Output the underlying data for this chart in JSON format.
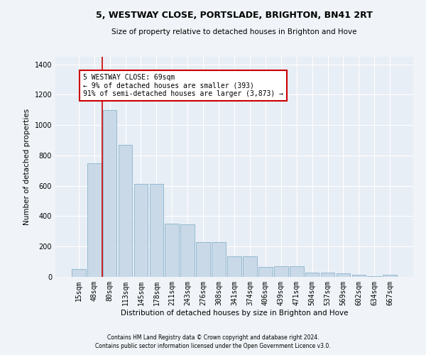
{
  "title1": "5, WESTWAY CLOSE, PORTSLADE, BRIGHTON, BN41 2RT",
  "title2": "Size of property relative to detached houses in Brighton and Hove",
  "xlabel": "Distribution of detached houses by size in Brighton and Hove",
  "ylabel": "Number of detached properties",
  "footer1": "Contains HM Land Registry data © Crown copyright and database right 2024.",
  "footer2": "Contains public sector information licensed under the Open Government Licence v3.0.",
  "annotation_line1": "5 WESTWAY CLOSE: 69sqm",
  "annotation_line2": "← 9% of detached houses are smaller (393)",
  "annotation_line3": "91% of semi-detached houses are larger (3,873) →",
  "bar_labels": [
    "15sqm",
    "48sqm",
    "80sqm",
    "113sqm",
    "145sqm",
    "178sqm",
    "211sqm",
    "243sqm",
    "276sqm",
    "308sqm",
    "341sqm",
    "374sqm",
    "406sqm",
    "439sqm",
    "471sqm",
    "504sqm",
    "537sqm",
    "569sqm",
    "602sqm",
    "634sqm",
    "667sqm"
  ],
  "bar_values": [
    50,
    750,
    1100,
    870,
    615,
    615,
    350,
    345,
    230,
    230,
    135,
    135,
    65,
    70,
    70,
    30,
    30,
    25,
    15,
    5,
    15
  ],
  "bar_color": "#c9d9e8",
  "bar_edge_color": "#8ab4cc",
  "ylim": [
    0,
    1450
  ],
  "yticks": [
    0,
    200,
    400,
    600,
    800,
    1000,
    1200,
    1400
  ],
  "fig_bg_color": "#f0f4f8",
  "plot_bg_color": "#e8eef5",
  "red_line_color": "#cc0000",
  "annotation_box_color": "#cc0000",
  "grid_color": "#ffffff"
}
